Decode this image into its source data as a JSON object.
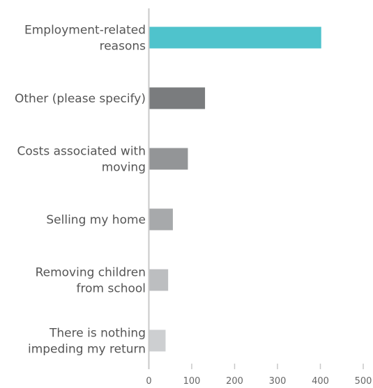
{
  "chart_data": {
    "type": "bar",
    "orientation": "horizontal",
    "categories": [
      [
        "Employment-related",
        "reasons"
      ],
      [
        "Other (please specify)"
      ],
      [
        "Costs associated with",
        "moving"
      ],
      [
        "Selling my home"
      ],
      [
        "Removing children",
        "from school"
      ],
      [
        "There is nothing",
        "impeding my return"
      ]
    ],
    "values": [
      402,
      131,
      91,
      56,
      45,
      39
    ],
    "colors": [
      "#4fc3cc",
      "#7a7c7e",
      "#939597",
      "#a7a9ab",
      "#bcbec0",
      "#cdcfd1"
    ],
    "xlim": [
      0,
      500
    ],
    "xticks": [
      "0",
      "100",
      "200",
      "300",
      "400",
      "500"
    ],
    "title": "",
    "xlabel": "",
    "ylabel": "",
    "grid": false
  }
}
